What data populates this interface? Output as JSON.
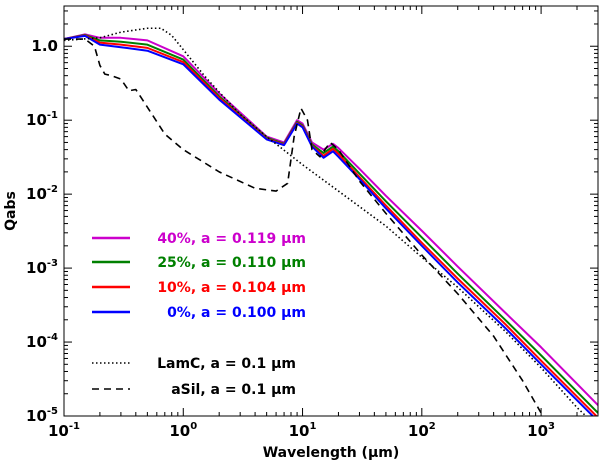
{
  "chart_data": {
    "type": "line",
    "title": "",
    "xlabel": "Wavelength (μm)",
    "ylabel": "Qabs",
    "xscale": "log",
    "yscale": "log",
    "xlim": [
      0.1,
      3000
    ],
    "ylim": [
      1e-05,
      3.5
    ],
    "grid": false,
    "legend_placement": "lower-left",
    "x_ticks": [
      {
        "base": "10",
        "exp": "-1",
        "value": 0.1
      },
      {
        "base": "10",
        "exp": "0",
        "value": 1
      },
      {
        "base": "10",
        "exp": "1",
        "value": 10
      },
      {
        "base": "10",
        "exp": "2",
        "value": 100
      },
      {
        "base": "10",
        "exp": "3",
        "value": 1000
      }
    ],
    "y_ticks": [
      {
        "base": "10",
        "exp": "-5",
        "value": 1e-05
      },
      {
        "base": "10",
        "exp": "-4",
        "value": 0.0001
      },
      {
        "base": "10",
        "exp": "-3",
        "value": 0.001
      },
      {
        "base": "10",
        "exp": "-2",
        "value": 0.01
      },
      {
        "base": "10",
        "exp": "-1",
        "value": 0.1
      },
      {
        "base": "1.0",
        "exp": "",
        "value": 1.0
      }
    ],
    "series": [
      {
        "name": "40%, a = 0.119 μm",
        "color": "#cc00cc",
        "style": "solid",
        "x": [
          0.1,
          0.15,
          0.2,
          0.3,
          0.5,
          1,
          2,
          5,
          7,
          9,
          10,
          12,
          15,
          18,
          20,
          30,
          50,
          100,
          200,
          500,
          1000,
          3000
        ],
        "y": [
          1.25,
          1.45,
          1.3,
          1.3,
          1.2,
          0.73,
          0.23,
          0.06,
          0.05,
          0.1,
          0.09,
          0.05,
          0.04,
          0.048,
          0.042,
          0.022,
          0.0095,
          0.0032,
          0.00105,
          0.00025,
          8.5e-05,
          1.4e-05
        ]
      },
      {
        "name": "25%, a = 0.110 μm",
        "color": "#008000",
        "style": "solid",
        "x": [
          0.1,
          0.15,
          0.2,
          0.3,
          0.5,
          1,
          2,
          5,
          7,
          9,
          10,
          12,
          15,
          18,
          20,
          30,
          50,
          100,
          200,
          500,
          1000,
          3000
        ],
        "y": [
          1.25,
          1.42,
          1.2,
          1.15,
          1.05,
          0.66,
          0.21,
          0.058,
          0.048,
          0.095,
          0.085,
          0.047,
          0.036,
          0.044,
          0.038,
          0.019,
          0.008,
          0.0026,
          0.00084,
          0.0002,
          6.6e-05,
          1.1e-05
        ]
      },
      {
        "name": "10%, a = 0.104 μm",
        "color": "#ff0000",
        "style": "solid",
        "x": [
          0.1,
          0.15,
          0.2,
          0.3,
          0.5,
          1,
          2,
          5,
          7,
          9,
          10,
          12,
          15,
          18,
          20,
          30,
          50,
          100,
          200,
          500,
          1000,
          3000
        ],
        "y": [
          1.25,
          1.4,
          1.12,
          1.05,
          0.95,
          0.61,
          0.2,
          0.056,
          0.047,
          0.092,
          0.082,
          0.045,
          0.033,
          0.041,
          0.035,
          0.017,
          0.007,
          0.0022,
          0.00072,
          0.000175,
          5.6e-05,
          9.5e-06
        ]
      },
      {
        "name": "0%, a = 0.100 μm",
        "color": "#0000ff",
        "style": "solid",
        "x": [
          0.1,
          0.15,
          0.2,
          0.3,
          0.5,
          1,
          2,
          5,
          7,
          9,
          10,
          12,
          15,
          18,
          20,
          30,
          50,
          100,
          200,
          500,
          1000,
          3000
        ],
        "y": [
          1.25,
          1.38,
          1.05,
          0.97,
          0.87,
          0.57,
          0.19,
          0.055,
          0.046,
          0.09,
          0.08,
          0.044,
          0.031,
          0.038,
          0.032,
          0.016,
          0.0064,
          0.002,
          0.00064,
          0.000155,
          5e-05,
          8.5e-06
        ]
      },
      {
        "name": "LamC, a = 0.1 μm",
        "color": "#000000",
        "style": "dotted",
        "x": [
          0.1,
          0.2,
          0.3,
          0.5,
          0.65,
          0.8,
          1,
          1.5,
          2,
          3,
          5,
          10,
          20,
          50,
          100,
          200,
          500,
          1000,
          2000,
          3000
        ],
        "y": [
          1.2,
          1.3,
          1.55,
          1.75,
          1.75,
          1.4,
          0.9,
          0.4,
          0.24,
          0.12,
          0.06,
          0.025,
          0.011,
          0.0037,
          0.0014,
          0.00055,
          0.00014,
          4.5e-05,
          1.3e-05,
          7e-06
        ]
      },
      {
        "name": "aSil, a = 0.1 μm",
        "color": "#000000",
        "style": "dashed",
        "x": [
          0.1,
          0.15,
          0.18,
          0.2,
          0.22,
          0.25,
          0.3,
          0.35,
          0.4,
          0.5,
          0.7,
          1,
          2,
          4,
          6,
          7.5,
          8.5,
          9.7,
          11,
          12,
          14,
          17,
          20,
          30,
          50,
          100,
          200,
          400,
          700,
          1000,
          1400
        ],
        "y": [
          1.25,
          1.25,
          1.0,
          0.55,
          0.42,
          0.4,
          0.36,
          0.25,
          0.26,
          0.15,
          0.065,
          0.04,
          0.02,
          0.012,
          0.011,
          0.014,
          0.06,
          0.145,
          0.1,
          0.04,
          0.032,
          0.05,
          0.04,
          0.015,
          0.0055,
          0.0015,
          0.00045,
          0.00012,
          3e-05,
          1.1e-05,
          4e-06
        ]
      }
    ],
    "legend": [
      {
        "label": "40%, a = 0.119 μm",
        "color": "#cc00cc",
        "style": "solid"
      },
      {
        "label": "25%, a = 0.110 μm",
        "color": "#008000",
        "style": "solid"
      },
      {
        "label": "10%, a = 0.104 μm",
        "color": "#ff0000",
        "style": "solid"
      },
      {
        "label": "0%, a = 0.100 μm",
        "color": "#0000ff",
        "style": "solid"
      },
      {
        "label": "LamC, a = 0.1 μm",
        "color": "#000000",
        "style": "dotted"
      },
      {
        "label": "aSil, a = 0.1 μm",
        "color": "#000000",
        "style": "dashed"
      }
    ]
  }
}
